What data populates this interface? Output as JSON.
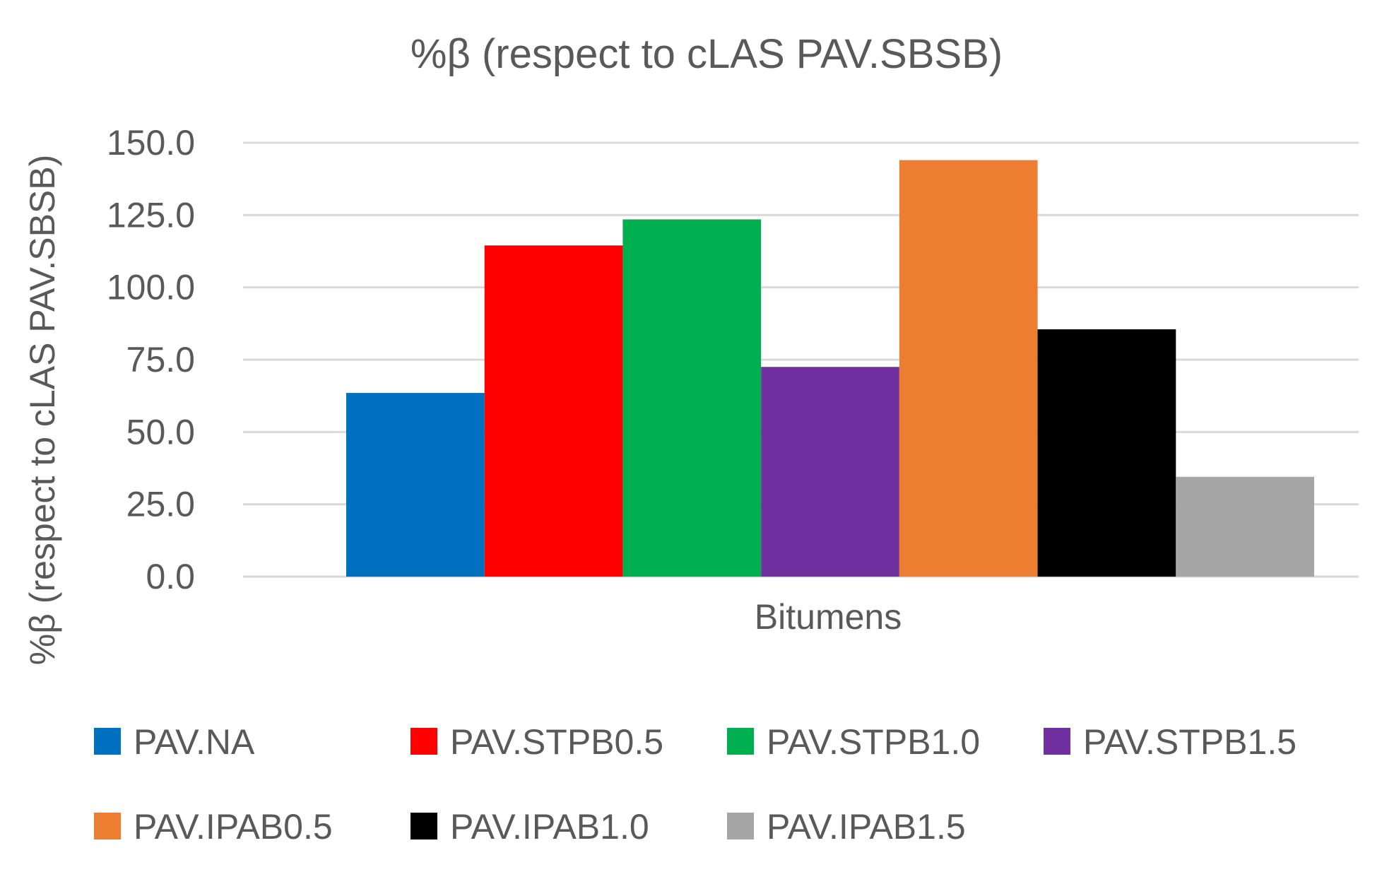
{
  "chart_data": {
    "type": "bar",
    "title": "%β (respect to cLAS PAV.SBSB)",
    "xlabel": "Bitumens",
    "ylabel": "%β (respect to cLAS PAV.SBSB)",
    "categories": [
      "Bitumens"
    ],
    "ylim": [
      0,
      150
    ],
    "yticks": [
      "0.0",
      "25.0",
      "50.0",
      "75.0",
      "100.0",
      "125.0",
      "150.0"
    ],
    "grid": true,
    "legend_position": "bottom",
    "series": [
      {
        "name": "PAV.NA",
        "values": [
          63.5
        ],
        "color": "#0070C0"
      },
      {
        "name": "PAV.STPB0.5",
        "values": [
          114.5
        ],
        "color": "#FF0000"
      },
      {
        "name": "PAV.STPB1.0",
        "values": [
          123.5
        ],
        "color": "#00B050"
      },
      {
        "name": "PAV.STPB1.5",
        "values": [
          72.5
        ],
        "color": "#7030A0"
      },
      {
        "name": "PAV.IPAB0.5",
        "values": [
          144.0
        ],
        "color": "#ED7D31"
      },
      {
        "name": "PAV.IPAB1.0",
        "values": [
          85.5
        ],
        "color": "#000000"
      },
      {
        "name": "PAV.IPAB1.5",
        "values": [
          34.5
        ],
        "color": "#A6A6A6"
      }
    ]
  }
}
